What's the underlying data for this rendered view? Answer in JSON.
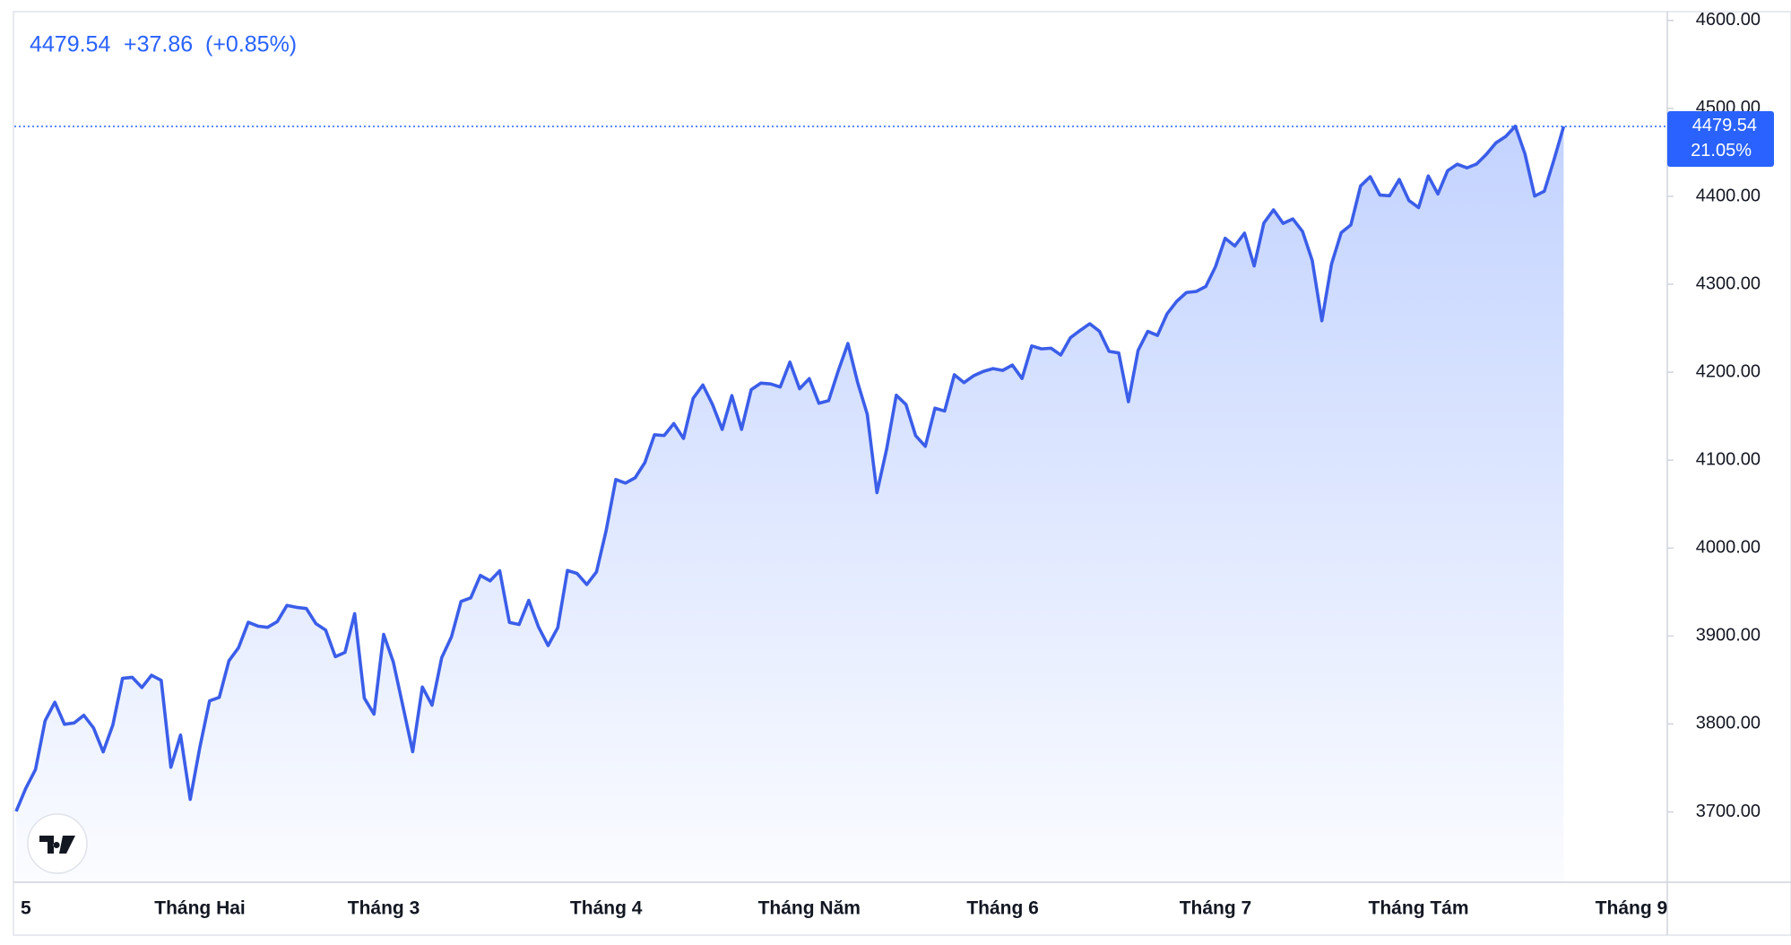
{
  "chart_data": {
    "type": "area",
    "header": {
      "price": 4479.54,
      "change": "+37.86",
      "change_pct": "(+0.85%)"
    },
    "price_label": {
      "value": 4479.54,
      "label": "4479.54"
    },
    "pct_label": "21.05%",
    "color": "#3b5ee9",
    "categories": [
      null,
      "5",
      null,
      null,
      null,
      null,
      null,
      null,
      null,
      null,
      null,
      null,
      null,
      null,
      null,
      null,
      null,
      null,
      null,
      "Tháng Hai",
      null,
      null,
      null,
      null,
      null,
      null,
      null,
      null,
      null,
      null,
      null,
      null,
      null,
      null,
      null,
      null,
      null,
      null,
      "Tháng 3",
      null,
      null,
      null,
      null,
      null,
      null,
      null,
      null,
      null,
      null,
      null,
      null,
      null,
      null,
      null,
      null,
      null,
      null,
      null,
      null,
      null,
      null,
      "Tháng 4",
      null,
      null,
      null,
      null,
      null,
      null,
      null,
      null,
      null,
      null,
      null,
      null,
      null,
      null,
      null,
      null,
      null,
      null,
      null,
      null,
      "Tháng Năm",
      null,
      null,
      null,
      null,
      null,
      null,
      null,
      null,
      null,
      null,
      null,
      null,
      null,
      null,
      null,
      null,
      null,
      null,
      null,
      "Tháng 6",
      null,
      null,
      null,
      null,
      null,
      null,
      null,
      null,
      null,
      null,
      null,
      null,
      null,
      null,
      null,
      null,
      null,
      null,
      null,
      null,
      null,
      "Tháng 7",
      null,
      null,
      null,
      null,
      null,
      null,
      null,
      null,
      null,
      null,
      null,
      null,
      null,
      null,
      null,
      null,
      null,
      null,
      null,
      null,
      "Tháng Tám",
      null,
      null,
      null,
      null,
      null,
      null,
      null,
      null,
      null,
      null,
      null,
      null,
      null,
      null,
      null,
      null,
      null,
      null,
      null,
      null,
      null,
      "Tháng 9"
    ],
    "values": [
      3700.65,
      3726.86,
      3748.14,
      3803.79,
      3824.68,
      3799.61,
      3801.19,
      3809.84,
      3795.54,
      3768.25,
      3798.91,
      3851.85,
      3853.07,
      3841.47,
      3855.36,
      3849.62,
      3750.77,
      3787.38,
      3714.24,
      3773.86,
      3826.31,
      3830.17,
      3871.74,
      3886.83,
      3915.59,
      3911.23,
      3909.88,
      3916.38,
      3934.83,
      3932.59,
      3931.33,
      3913.97,
      3906.71,
      3876.5,
      3881.37,
      3925.43,
      3829.34,
      3811.15,
      3901.82,
      3870.29,
      3819.72,
      3768.47,
      3841.94,
      3821.35,
      3875.44,
      3898.81,
      3939.34,
      3943.34,
      3968.94,
      3962.71,
      3974.12,
      3915.46,
      3913.1,
      3940.59,
      3910.52,
      3889.14,
      3909.52,
      3974.54,
      3971.09,
      3958.55,
      3972.89,
      4019.87,
      4077.91,
      4073.94,
      4079.95,
      4097.17,
      4128.8,
      4127.99,
      4141.59,
      4124.66,
      4170.42,
      4185.47,
      4163.26,
      4134.94,
      4173.42,
      4134.98,
      4180.17,
      4187.62,
      4186.72,
      4183.18,
      4211.47,
      4181.17,
      4192.66,
      4164.66,
      4167.59,
      4201.62,
      4232.6,
      4188.43,
      4152.1,
      4063.04,
      4112.5,
      4173.85,
      4163.29,
      4127.83,
      4115.68,
      4159.12,
      4155.86,
      4197.05,
      4188.13,
      4195.99,
      4200.88,
      4204.11,
      4202.04,
      4208.12,
      4192.85,
      4229.89,
      4226.52,
      4227.26,
      4219.55,
      4239.18,
      4247.44,
      4255.15,
      4246.59,
      4223.7,
      4221.86,
      4166.45,
      4224.79,
      4246.44,
      4241.84,
      4266.49,
      4280.7,
      4290.61,
      4291.8,
      4297.5,
      4319.94,
      4352.34,
      4343.54,
      4358.13,
      4320.82,
      4369.55,
      4384.63,
      4369.21,
      4374.3,
      4360.03,
      4327.16,
      4258.49,
      4323.06,
      4358.69,
      4367.48,
      4411.79,
      4422.3,
      4401.46,
      4400.64,
      4419.15,
      4395.26,
      4387.16,
      4423.15,
      4402.66,
      4429.1,
      4436.52,
      4432.35,
      4436.75,
      4447.7,
      4460.83,
      4468.0,
      4479.71,
      4448.08,
      4400.27,
      4405.8,
      4441.67,
      4479.54,
      null,
      null,
      null,
      null,
      null,
      null,
      null
    ],
    "ylim": [
      3620,
      4610
    ],
    "yticks": [
      {
        "value": 3700,
        "label": "3700.00"
      },
      {
        "value": 3800,
        "label": "3800.00"
      },
      {
        "value": 3900,
        "label": "3900.00"
      },
      {
        "value": 4000,
        "label": "4000.00"
      },
      {
        "value": 4100,
        "label": "4100.00"
      },
      {
        "value": 4200,
        "label": "4200.00"
      },
      {
        "value": 4300,
        "label": "4300.00"
      },
      {
        "value": 4400,
        "label": "4400.00"
      },
      {
        "value": 4500,
        "label": "4500.00"
      },
      {
        "value": 4600,
        "label": "4600.00"
      }
    ]
  }
}
